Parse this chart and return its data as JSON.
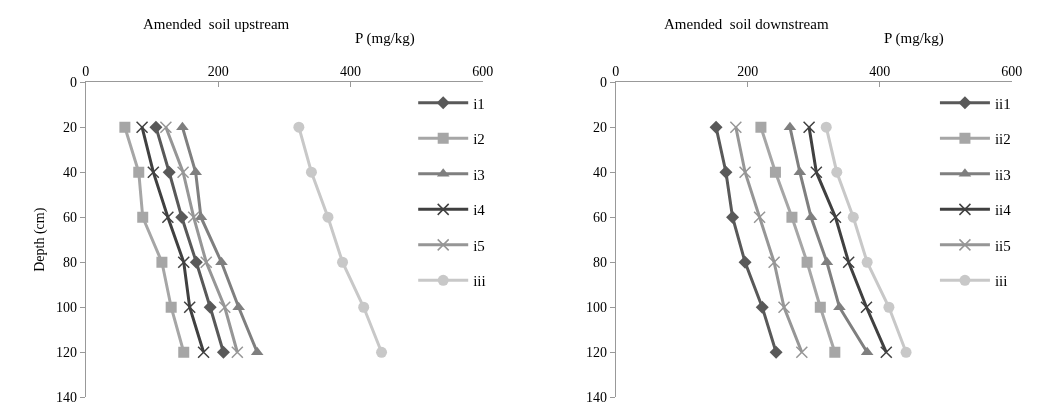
{
  "chart_data": [
    {
      "type": "line",
      "title": "Amended  soil upstream",
      "xlabel": "P (mg/kg)",
      "ylabel": "Depth (cm)",
      "xlim": [
        0,
        600
      ],
      "xticks": [
        0,
        200,
        400,
        600
      ],
      "ylim": [
        140,
        0
      ],
      "yticks": [
        0,
        20,
        40,
        60,
        80,
        100,
        120,
        140
      ],
      "legend": "right",
      "series": [
        {
          "name": "i1",
          "color": "#595959",
          "marker": "diamond",
          "x": [
            106,
            126,
            145,
            167,
            188,
            208
          ],
          "values": [
            20,
            40,
            60,
            80,
            100,
            120
          ]
        },
        {
          "name": "i2",
          "color": "#a6a6a6",
          "marker": "square",
          "x": [
            59,
            80,
            86,
            115,
            129,
            148
          ],
          "values": [
            20,
            40,
            60,
            80,
            100,
            120
          ]
        },
        {
          "name": "i3",
          "color": "#7f7f7f",
          "marker": "triangle",
          "x": [
            146,
            166,
            174,
            205,
            231,
            259
          ],
          "values": [
            20,
            40,
            60,
            80,
            100,
            120
          ]
        },
        {
          "name": "i4",
          "color": "#404040",
          "marker": "cross",
          "x": [
            85,
            102,
            124,
            148,
            157,
            178
          ],
          "values": [
            20,
            40,
            60,
            80,
            100,
            120
          ]
        },
        {
          "name": "i5",
          "color": "#969696",
          "marker": "cross",
          "x": [
            121,
            147,
            163,
            182,
            210,
            229
          ],
          "values": [
            20,
            40,
            60,
            80,
            100,
            120
          ]
        },
        {
          "name": "iii",
          "color": "#c8c8c8",
          "marker": "circle",
          "x": [
            322,
            341,
            366,
            388,
            420,
            447
          ],
          "values": [
            20,
            40,
            60,
            80,
            100,
            120
          ]
        }
      ]
    },
    {
      "type": "line",
      "title": "Amended  soil downstream",
      "xlabel": "P (mg/kg)",
      "xlim": [
        0,
        600
      ],
      "xticks": [
        0,
        200,
        400,
        600
      ],
      "ylim": [
        140,
        0
      ],
      "yticks": [
        0,
        20,
        40,
        60,
        80,
        100,
        120,
        140
      ],
      "legend": "right",
      "series": [
        {
          "name": "ii1",
          "color": "#595959",
          "marker": "diamond",
          "x": [
            152,
            167,
            177,
            196,
            222,
            243
          ],
          "values": [
            20,
            40,
            60,
            80,
            100,
            120
          ]
        },
        {
          "name": "ii2",
          "color": "#a6a6a6",
          "marker": "square",
          "x": [
            220,
            242,
            267,
            290,
            310,
            332
          ],
          "values": [
            20,
            40,
            60,
            80,
            100,
            120
          ]
        },
        {
          "name": "ii3",
          "color": "#7f7f7f",
          "marker": "triangle",
          "x": [
            264,
            279,
            296,
            320,
            339,
            381
          ],
          "values": [
            20,
            40,
            60,
            80,
            100,
            120
          ]
        },
        {
          "name": "ii4",
          "color": "#404040",
          "marker": "cross",
          "x": [
            293,
            304,
            333,
            353,
            380,
            410
          ],
          "values": [
            20,
            40,
            60,
            80,
            100,
            120
          ]
        },
        {
          "name": "ii5",
          "color": "#969696",
          "marker": "cross",
          "x": [
            182,
            196,
            218,
            240,
            255,
            282
          ],
          "values": [
            20,
            40,
            60,
            80,
            100,
            120
          ]
        },
        {
          "name": "iii",
          "color": "#c8c8c8",
          "marker": "circle",
          "x": [
            319,
            335,
            360,
            381,
            414,
            440
          ],
          "values": [
            20,
            40,
            60,
            80,
            100,
            120
          ]
        }
      ]
    }
  ]
}
